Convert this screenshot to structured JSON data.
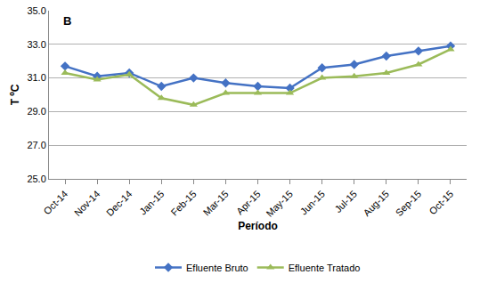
{
  "chart_data": {
    "type": "line",
    "annotations": [
      {
        "text": "B"
      }
    ],
    "x_label": "Período",
    "y_label": "T ºC",
    "categories": [
      "Oct-14",
      "Nov-14",
      "Dec-14",
      "Jan-15",
      "Feb-15",
      "Mar-15",
      "Apr-15",
      "May-15",
      "Jun-15",
      "Jul-15",
      "Aug-15",
      "Sep-15",
      "Oct-15"
    ],
    "series": [
      {
        "name": "Efluente Bruto",
        "color": "#4472c4",
        "marker": "diamond",
        "values": [
          31.7,
          31.1,
          31.3,
          30.5,
          31.0,
          30.7,
          30.5,
          30.4,
          31.6,
          31.8,
          32.3,
          32.6,
          32.9
        ]
      },
      {
        "name": "Efluente Tratado",
        "color": "#9bbb59",
        "marker": "triangle-up",
        "values": [
          31.3,
          30.9,
          31.2,
          29.8,
          29.4,
          30.1,
          30.1,
          30.1,
          31.0,
          31.1,
          31.3,
          31.8,
          32.7
        ]
      }
    ],
    "ylim": [
      25,
      35
    ],
    "yticks": [
      {
        "value": 25,
        "label": "25.0"
      },
      {
        "value": 27,
        "label": "27.0"
      },
      {
        "value": 29,
        "label": "29.0"
      },
      {
        "value": 31,
        "label": "31.0"
      },
      {
        "value": 33,
        "label": "33.0"
      },
      {
        "value": 35,
        "label": "35.0"
      }
    ],
    "grid": true,
    "legend": "bottom"
  }
}
